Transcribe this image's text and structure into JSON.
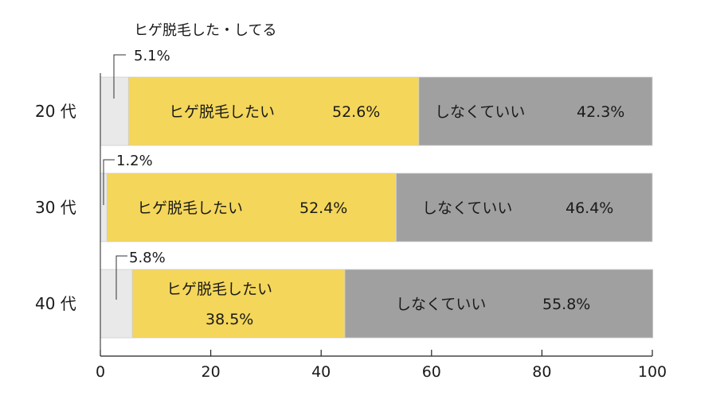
{
  "chart_data": {
    "type": "bar",
    "orientation": "horizontal",
    "stacked": true,
    "categories": [
      "20 代",
      "30 代",
      "40 代"
    ],
    "series": [
      {
        "name": "ヒゲ脱毛した・してる",
        "values": [
          5.1,
          1.2,
          5.8
        ],
        "color": "#e8e9e8"
      },
      {
        "name": "ヒゲ脱毛したい",
        "values": [
          52.6,
          52.4,
          38.5
        ],
        "color": "#f4d65a"
      },
      {
        "name": "しなくていい",
        "values": [
          42.3,
          46.4,
          55.8
        ],
        "color": "#a0a0a0"
      }
    ],
    "segment_labels": [
      [
        "5.1%",
        "ヒゲ脱毛したい",
        "52.6%",
        "しなくていい",
        "42.3%"
      ],
      [
        "1.2%",
        "ヒゲ脱毛したい",
        "52.4%",
        "しなくていい",
        "46.4%"
      ],
      [
        "5.8%",
        "ヒゲ脱毛したい",
        "38.5%",
        "しなくていい",
        "55.8%"
      ]
    ],
    "callout_title": "ヒゲ脱毛した・してる",
    "xlim": [
      0,
      100
    ],
    "xticks": [
      0,
      20,
      40,
      60,
      80,
      100
    ],
    "grid": false,
    "legend": "none"
  }
}
